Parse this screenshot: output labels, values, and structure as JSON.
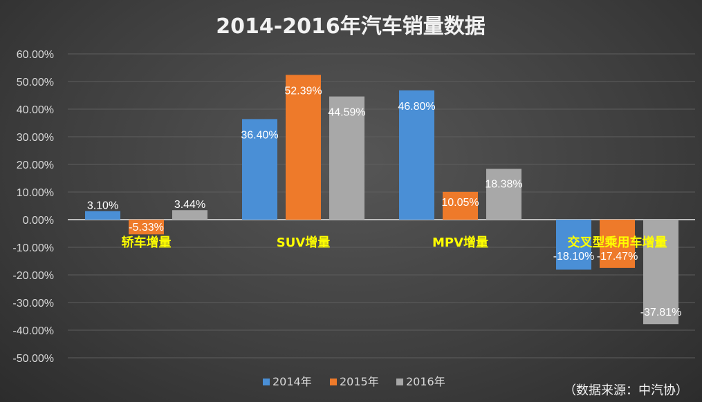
{
  "chart_data": {
    "type": "bar",
    "title": "2014-2016年汽车销量数据",
    "categories": [
      "轿车增量",
      "SUV增量",
      "MPV增量",
      "交叉型乘用车增量"
    ],
    "series": [
      {
        "name": "2014年",
        "color": "#4a8fd6",
        "values": [
          3.1,
          36.4,
          46.8,
          -18.1
        ],
        "labels": [
          "3.10%",
          "36.40%",
          "46.80%",
          "-18.10%"
        ]
      },
      {
        "name": "2015年",
        "color": "#ee7a2a",
        "values": [
          -5.33,
          52.39,
          10.05,
          -17.47
        ],
        "labels": [
          "-5.33%",
          "52.39%",
          "10.05%",
          "-17.47%"
        ]
      },
      {
        "name": "2016年",
        "color": "#a8a8a8",
        "values": [
          3.44,
          44.59,
          18.38,
          -37.81
        ],
        "labels": [
          "3.44%",
          "44.59%",
          "18.38%",
          "-37.81%"
        ]
      }
    ],
    "ylim": [
      -50,
      60
    ],
    "yticks": [
      "60.00%",
      "50.00%",
      "40.00%",
      "30.00%",
      "20.00%",
      "10.00%",
      "0.00%",
      "-10.00%",
      "-20.00%",
      "-30.00%",
      "-40.00%",
      "-50.00%"
    ],
    "ytick_values": [
      60,
      50,
      40,
      30,
      20,
      10,
      0,
      -10,
      -20,
      -30,
      -40,
      -50
    ],
    "grid": true,
    "legend": "bottom",
    "source_note": "（数据来源：中汽协）"
  }
}
